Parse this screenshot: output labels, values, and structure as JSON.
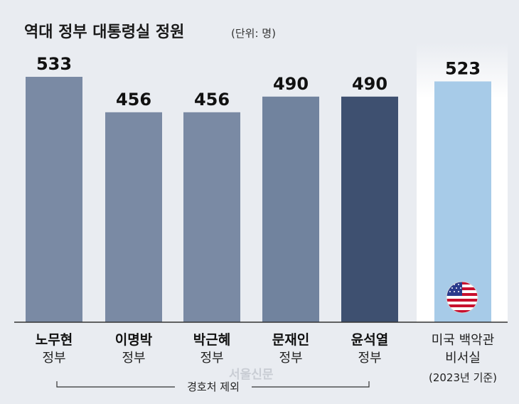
{
  "chart_data": {
    "type": "bar",
    "title": "역대 정부 대통령실 정원",
    "unit": "(단위: 명)",
    "ylim": [
      0,
      533
    ],
    "grid": false,
    "bars": [
      {
        "name": "노무현",
        "sub": "정부",
        "value": 533,
        "label": "533",
        "color": "#7a8aa4"
      },
      {
        "name": "이명박",
        "sub": "정부",
        "value": 456,
        "label": "456",
        "color": "#7a8aa4"
      },
      {
        "name": "박근혜",
        "sub": "정부",
        "value": 456,
        "label": "456",
        "color": "#7a8aa4"
      },
      {
        "name": "문재인",
        "sub": "정부",
        "value": 490,
        "label": "490",
        "color": "#71839e"
      },
      {
        "name": "윤석열",
        "sub": "정부",
        "value": 490,
        "label": "490",
        "color": "#3e5070"
      }
    ],
    "comparison": {
      "lines": [
        "미국 백악관",
        "비서실",
        "(2023년 기준)"
      ],
      "value": 523,
      "label": "523",
      "color": "#a7cbe8",
      "icon": "us-flag-icon"
    },
    "bracket_note": "경호처 제외"
  },
  "watermark": "서울신문"
}
